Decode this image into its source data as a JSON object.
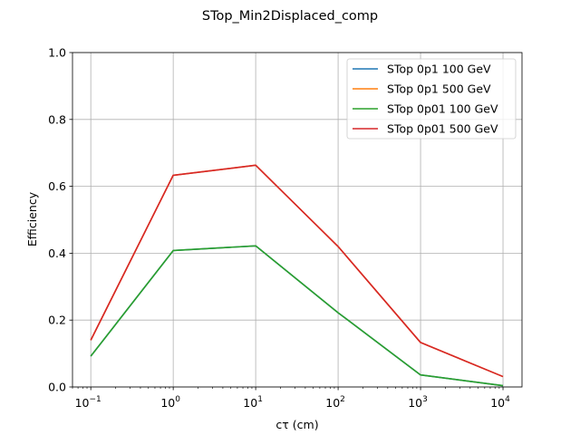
{
  "chart_data": {
    "type": "line",
    "title": "STop_Min2Displaced_comp",
    "xlabel": "cτ (cm)",
    "ylabel": "Efficiency",
    "xscale": "log",
    "xlim": [
      0.06,
      17000
    ],
    "ylim": [
      0,
      1.0
    ],
    "grid": true,
    "legend_position": "top-right",
    "x": [
      0.1,
      1,
      10,
      100,
      1000,
      10000
    ],
    "x_ticks": [
      {
        "value": 0.1,
        "base": "10",
        "exp": "−1"
      },
      {
        "value": 1,
        "base": "10",
        "exp": "0"
      },
      {
        "value": 10,
        "base": "10",
        "exp": "1"
      },
      {
        "value": 100,
        "base": "10",
        "exp": "2"
      },
      {
        "value": 1000,
        "base": "10",
        "exp": "3"
      },
      {
        "value": 10000,
        "base": "10",
        "exp": "4"
      }
    ],
    "y_ticks": [
      {
        "value": 0.0,
        "label": "0.0"
      },
      {
        "value": 0.2,
        "label": "0.2"
      },
      {
        "value": 0.4,
        "label": "0.4"
      },
      {
        "value": 0.6,
        "label": "0.6"
      },
      {
        "value": 0.8,
        "label": "0.8"
      },
      {
        "value": 1.0,
        "label": "1.0"
      }
    ],
    "series": [
      {
        "name": "STop 0p1 100 GeV",
        "color": "#1f77b4",
        "values": [
          0.092,
          0.408,
          0.422,
          0.222,
          0.036,
          0.004
        ]
      },
      {
        "name": "STop 0p1 500 GeV",
        "color": "#ff7f0e",
        "values": [
          0.14,
          0.633,
          0.663,
          0.42,
          0.133,
          0.031
        ]
      },
      {
        "name": "STop 0p01 100 GeV",
        "color": "#2ca02c",
        "values": [
          0.092,
          0.408,
          0.422,
          0.222,
          0.036,
          0.004
        ]
      },
      {
        "name": "STop 0p01 500 GeV",
        "color": "#d62728",
        "values": [
          0.14,
          0.633,
          0.663,
          0.42,
          0.133,
          0.031
        ]
      }
    ]
  }
}
